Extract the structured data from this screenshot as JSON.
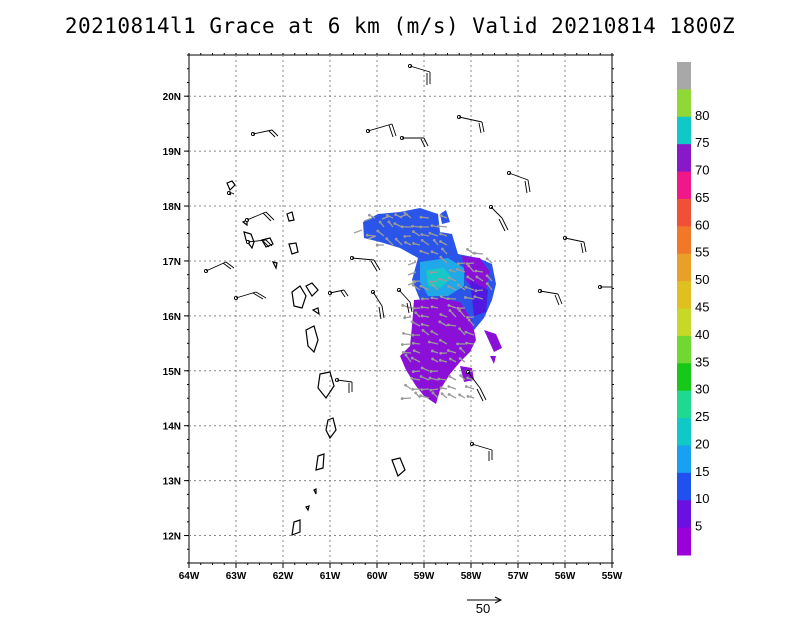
{
  "title": "20210814l1 Grace at 6 km (m/s) Valid 20210814 1800Z",
  "lon_ticks": [
    "64W",
    "63W",
    "62W",
    "61W",
    "60W",
    "59W",
    "58W",
    "57W",
    "56W",
    "55W"
  ],
  "lat_ticks": [
    "20N",
    "19N",
    "18N",
    "17N",
    "16N",
    "15N",
    "14N",
    "13N",
    "12N"
  ],
  "map_extent": {
    "lon_min": -64,
    "lon_max": -55,
    "lat_min": 11.5,
    "lat_max": 20.75
  },
  "colorbar": {
    "labels": [
      "5",
      "10",
      "15",
      "20",
      "25",
      "30",
      "35",
      "40",
      "45",
      "50",
      "55",
      "60",
      "65",
      "70",
      "75",
      "80"
    ],
    "colors": [
      "#9a00d8",
      "#6a10e0",
      "#2050f0",
      "#1aa0f0",
      "#10c8c8",
      "#20d890",
      "#18c818",
      "#70d830",
      "#c8d828",
      "#e0c020",
      "#e8a028",
      "#f07828",
      "#f05038",
      "#f01888",
      "#8818c8",
      "#10c8c8",
      "#90d838",
      "#a8a8a8"
    ]
  },
  "reference_vector": {
    "label": "50"
  },
  "land_color": "#ffffff",
  "grid_color": "#888888"
}
